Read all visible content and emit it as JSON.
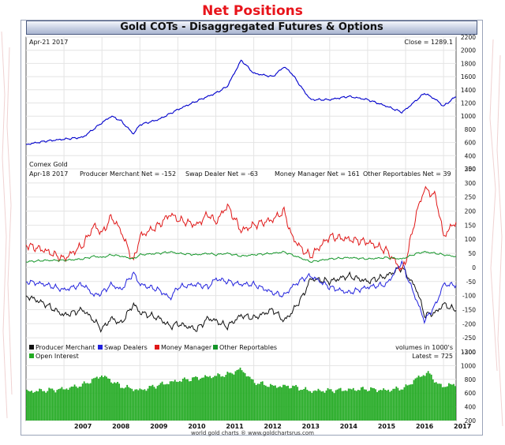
{
  "page": {
    "main_title": "Net Positions",
    "chart_title": "Gold COTs - Disaggregated Futures & Options",
    "footer": "world gold charts ® www.goldchartsrus.com"
  },
  "colors": {
    "title_red": "#e8141b",
    "price_line": "#0000cc",
    "producer_merchant": "#111111",
    "swap_dealers": "#2222dd",
    "money_manager": "#e01818",
    "other_reportables": "#15962a",
    "open_interest": "#22aa22"
  },
  "top_panel": {
    "date_label": "Apr-21 2017",
    "close_label": "Close = 1289.1",
    "series_label": "Comex Gold"
  },
  "middle_panel": {
    "date_label": "Apr-18 2017",
    "stats": [
      "Producer Merchant Net = -152",
      "Swap Dealer Net = -63",
      "Money Manager Net = 161",
      "Other Reportables Net = 39"
    ],
    "units_label": "volumes in 1000's",
    "legend": [
      "Producer Merchant",
      "Swap Dealers",
      "Money Manager",
      "Other Reportables"
    ]
  },
  "bottom_panel": {
    "legend": "Open Interest",
    "latest_label": "Latest = 725"
  },
  "chart_data": [
    {
      "type": "line",
      "title": "Comex Gold",
      "x": [
        2006.0,
        2006.5,
        2007.0,
        2007.5,
        2008.0,
        2008.25,
        2008.5,
        2008.83,
        2009.0,
        2009.5,
        2010.0,
        2010.5,
        2011.0,
        2011.3,
        2011.67,
        2012.0,
        2012.5,
        2012.8,
        2013.0,
        2013.3,
        2013.5,
        2014.0,
        2014.5,
        2015.0,
        2015.5,
        2015.9,
        2016.0,
        2016.5,
        2016.8,
        2017.0,
        2017.3
      ],
      "series": [
        {
          "name": "Comex Gold",
          "values": [
            570,
            620,
            650,
            680,
            900,
            1000,
            930,
            730,
            870,
            950,
            1100,
            1230,
            1350,
            1450,
            1850,
            1650,
            1600,
            1750,
            1650,
            1400,
            1250,
            1250,
            1300,
            1250,
            1150,
            1060,
            1100,
            1350,
            1250,
            1150,
            1289
          ]
        }
      ],
      "ylim": [
        200,
        2200
      ],
      "yticks": [
        200,
        400,
        600,
        800,
        1000,
        1200,
        1400,
        1600,
        1800,
        2000,
        2200
      ]
    },
    {
      "type": "line",
      "x": [
        2006.0,
        2006.5,
        2007.0,
        2007.5,
        2007.8,
        2008.0,
        2008.25,
        2008.5,
        2008.83,
        2009.0,
        2009.5,
        2009.8,
        2010.0,
        2010.5,
        2010.8,
        2011.0,
        2011.3,
        2011.67,
        2012.0,
        2012.5,
        2012.8,
        2013.0,
        2013.3,
        2013.5,
        2014.0,
        2014.5,
        2015.0,
        2015.5,
        2015.9,
        2016.0,
        2016.3,
        2016.5,
        2016.8,
        2017.0,
        2017.3
      ],
      "series": [
        {
          "name": "Producer Merchant",
          "values": [
            -100,
            -130,
            -170,
            -150,
            -190,
            -220,
            -180,
            -200,
            -130,
            -160,
            -180,
            -210,
            -200,
            -220,
            -180,
            -190,
            -210,
            -170,
            -180,
            -150,
            -190,
            -160,
            -100,
            -40,
            -50,
            -30,
            -50,
            -30,
            0,
            -20,
            -80,
            -170,
            -160,
            -130,
            -152
          ]
        },
        {
          "name": "Swap Dealers",
          "values": [
            -50,
            -60,
            -80,
            -60,
            -100,
            -90,
            -60,
            -80,
            -20,
            -60,
            -80,
            -110,
            -70,
            -60,
            -70,
            -40,
            -50,
            -60,
            -60,
            -90,
            -100,
            -70,
            -40,
            -30,
            -70,
            -90,
            -70,
            -60,
            20,
            -20,
            -120,
            -190,
            -130,
            -60,
            -63
          ]
        },
        {
          "name": "Money Manager",
          "values": [
            80,
            60,
            30,
            80,
            150,
            120,
            180,
            130,
            20,
            110,
            150,
            190,
            170,
            150,
            190,
            160,
            220,
            130,
            150,
            170,
            200,
            110,
            60,
            40,
            110,
            100,
            90,
            60,
            -10,
            20,
            200,
            280,
            250,
            110,
            161
          ]
        },
        {
          "name": "Other Reportables",
          "values": [
            20,
            25,
            25,
            30,
            40,
            35,
            45,
            40,
            30,
            45,
            50,
            55,
            50,
            45,
            50,
            45,
            50,
            40,
            45,
            50,
            55,
            45,
            30,
            20,
            30,
            35,
            30,
            35,
            30,
            35,
            50,
            55,
            50,
            45,
            39
          ]
        }
      ],
      "ylim": [
        -300,
        350
      ],
      "yticks": [
        -300,
        -250,
        -200,
        -150,
        -100,
        -50,
        0,
        50,
        100,
        150,
        200,
        250,
        300,
        350
      ]
    },
    {
      "type": "bar",
      "title": "Open Interest",
      "x": [
        2006.0,
        2006.5,
        2007.0,
        2007.5,
        2008.0,
        2008.5,
        2009.0,
        2009.5,
        2010.0,
        2010.5,
        2011.0,
        2011.3,
        2011.67,
        2012.0,
        2012.5,
        2013.0,
        2013.5,
        2014.0,
        2014.5,
        2015.0,
        2015.5,
        2016.0,
        2016.3,
        2016.6,
        2016.9,
        2017.3
      ],
      "series": [
        {
          "name": "Open Interest",
          "values": [
            620,
            640,
            660,
            720,
            860,
            700,
            640,
            720,
            780,
            820,
            850,
            870,
            950,
            760,
            700,
            700,
            630,
            640,
            650,
            660,
            640,
            680,
            820,
            900,
            700,
            725
          ]
        }
      ],
      "ylim": [
        200,
        1200
      ],
      "yticks": [
        200,
        400,
        600,
        800,
        1000,
        1200
      ],
      "xticks": [
        "2007",
        "2008",
        "2009",
        "2010",
        "2011",
        "2012",
        "2013",
        "2014",
        "2015",
        "2016",
        "2017"
      ]
    }
  ]
}
